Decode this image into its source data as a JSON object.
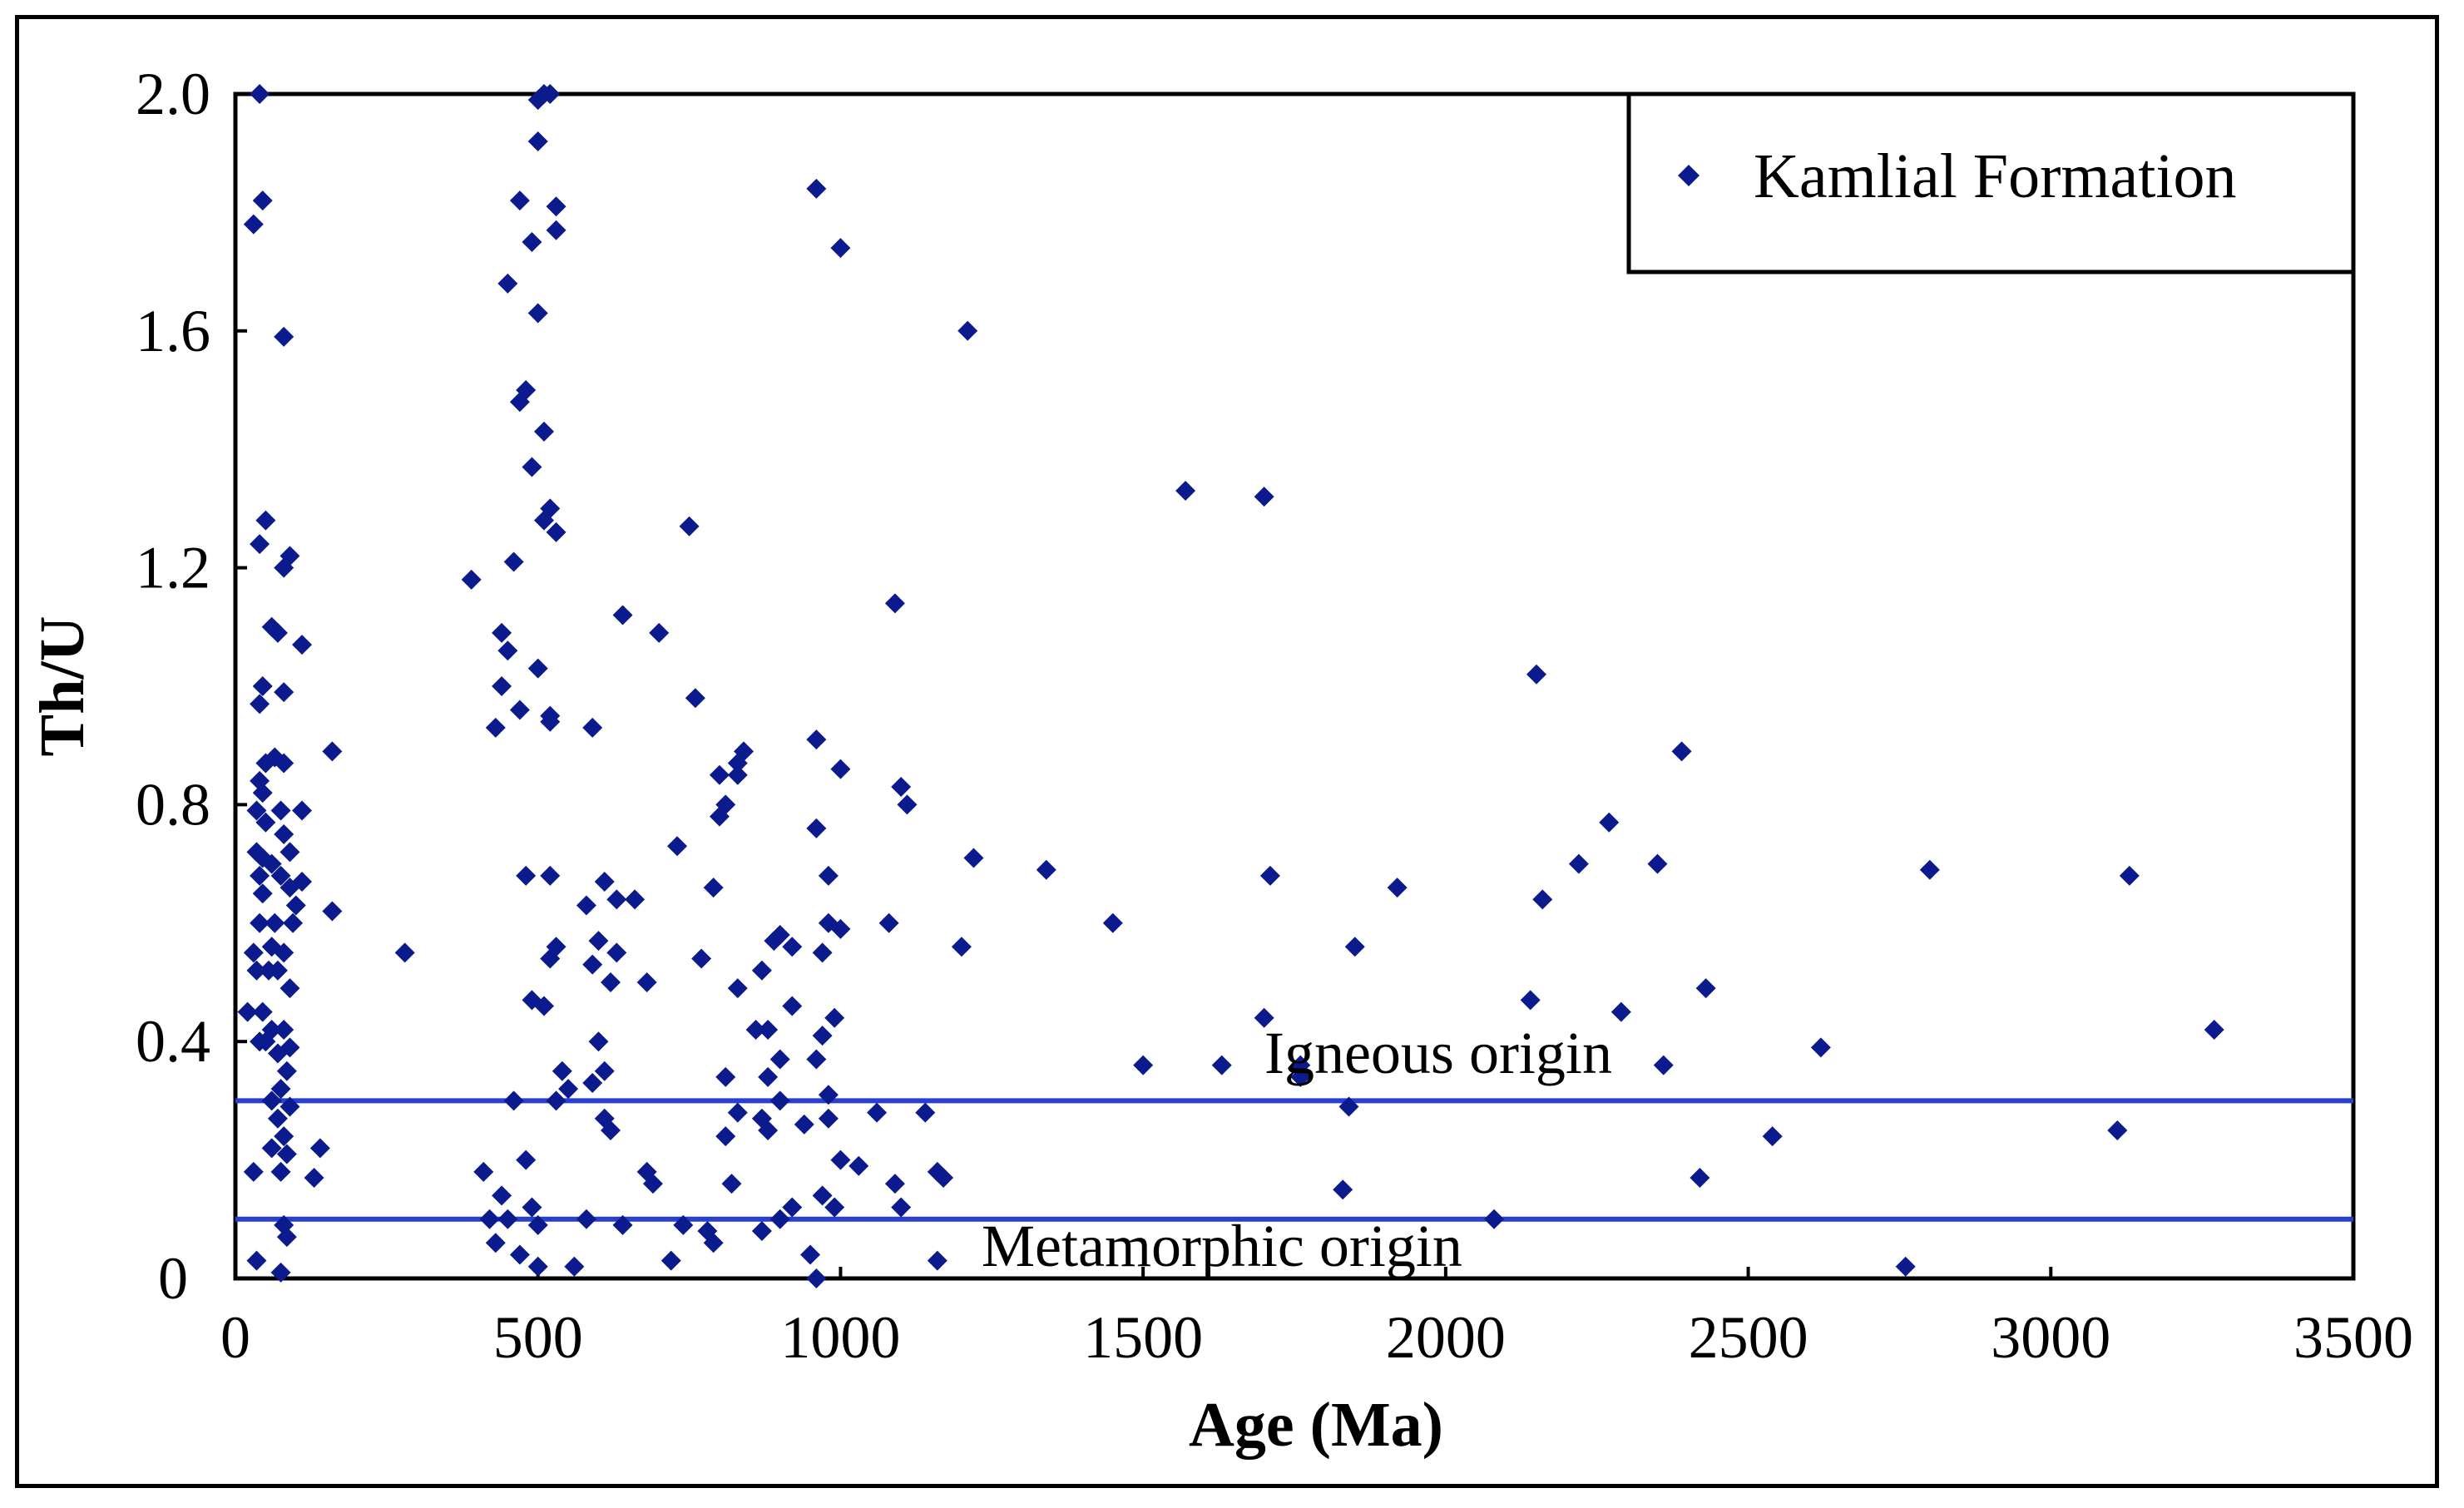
{
  "chart_data": {
    "type": "scatter",
    "title": "",
    "xlabel": "Age (Ma)",
    "ylabel": "Th/U",
    "xlim": [
      0,
      3500
    ],
    "ylim": [
      0,
      2.0
    ],
    "x_ticks": [
      0,
      500,
      1000,
      1500,
      2000,
      2500,
      3000,
      3500
    ],
    "x_tick_labels": [
      "0",
      "500",
      "1000",
      "1500",
      "2000",
      "2500",
      "3000",
      "3500"
    ],
    "y_ticks": [
      0,
      0.4,
      0.8,
      1.2,
      1.6,
      2.0
    ],
    "y_tick_labels": [
      "0",
      "0.4",
      "0.8",
      "1.2",
      "1.6",
      "2.0"
    ],
    "grid": false,
    "legend": {
      "position": "top-right",
      "entries": [
        "Kamlial Formation"
      ]
    },
    "reference_lines": [
      {
        "y": 0.3,
        "label": "Igneous origin",
        "color": "#2b3fcf"
      },
      {
        "y": 0.1,
        "label": "Metamorphic origin",
        "color": "#2b3fcf"
      }
    ],
    "series": [
      {
        "name": "Kamlial Formation",
        "color": "#0b1a8c",
        "marker": "diamond",
        "points": [
          [
            40,
            2.01
          ],
          [
            30,
            1.78
          ],
          [
            45,
            1.82
          ],
          [
            80,
            1.59
          ],
          [
            40,
            1.24
          ],
          [
            50,
            1.28
          ],
          [
            80,
            1.2
          ],
          [
            90,
            1.22
          ],
          [
            60,
            1.1
          ],
          [
            70,
            1.09
          ],
          [
            45,
            1.0
          ],
          [
            40,
            0.97
          ],
          [
            80,
            0.99
          ],
          [
            110,
            1.07
          ],
          [
            50,
            0.87
          ],
          [
            65,
            0.88
          ],
          [
            80,
            0.87
          ],
          [
            160,
            0.89
          ],
          [
            40,
            0.84
          ],
          [
            45,
            0.82
          ],
          [
            35,
            0.79
          ],
          [
            75,
            0.79
          ],
          [
            50,
            0.77
          ],
          [
            80,
            0.75
          ],
          [
            110,
            0.79
          ],
          [
            35,
            0.72
          ],
          [
            45,
            0.71
          ],
          [
            60,
            0.7
          ],
          [
            90,
            0.72
          ],
          [
            40,
            0.68
          ],
          [
            75,
            0.68
          ],
          [
            110,
            0.67
          ],
          [
            45,
            0.65
          ],
          [
            90,
            0.66
          ],
          [
            100,
            0.63
          ],
          [
            40,
            0.6
          ],
          [
            65,
            0.6
          ],
          [
            95,
            0.6
          ],
          [
            160,
            0.62
          ],
          [
            30,
            0.55
          ],
          [
            60,
            0.56
          ],
          [
            80,
            0.55
          ],
          [
            35,
            0.52
          ],
          [
            55,
            0.52
          ],
          [
            70,
            0.52
          ],
          [
            90,
            0.49
          ],
          [
            20,
            0.45
          ],
          [
            45,
            0.45
          ],
          [
            60,
            0.42
          ],
          [
            80,
            0.42
          ],
          [
            40,
            0.4
          ],
          [
            50,
            0.4
          ],
          [
            70,
            0.38
          ],
          [
            90,
            0.39
          ],
          [
            85,
            0.35
          ],
          [
            75,
            0.32
          ],
          [
            60,
            0.3
          ],
          [
            90,
            0.29
          ],
          [
            70,
            0.27
          ],
          [
            80,
            0.24
          ],
          [
            60,
            0.22
          ],
          [
            85,
            0.21
          ],
          [
            140,
            0.22
          ],
          [
            30,
            0.18
          ],
          [
            75,
            0.18
          ],
          [
            130,
            0.17
          ],
          [
            80,
            0.09
          ],
          [
            85,
            0.07
          ],
          [
            35,
            0.03
          ],
          [
            75,
            0.01
          ],
          [
            510,
            2.0
          ],
          [
            520,
            2.0
          ],
          [
            500,
            1.99
          ],
          [
            470,
            1.82
          ],
          [
            530,
            1.81
          ],
          [
            530,
            1.77
          ],
          [
            490,
            1.75
          ],
          [
            500,
            1.92
          ],
          [
            450,
            1.68
          ],
          [
            500,
            1.63
          ],
          [
            480,
            1.5
          ],
          [
            470,
            1.48
          ],
          [
            510,
            1.43
          ],
          [
            490,
            1.37
          ],
          [
            520,
            1.3
          ],
          [
            510,
            1.28
          ],
          [
            530,
            1.26
          ],
          [
            460,
            1.21
          ],
          [
            390,
            1.18
          ],
          [
            440,
            1.09
          ],
          [
            450,
            1.06
          ],
          [
            500,
            1.03
          ],
          [
            440,
            1.0
          ],
          [
            470,
            0.96
          ],
          [
            520,
            0.95
          ],
          [
            520,
            0.94
          ],
          [
            430,
            0.93
          ],
          [
            480,
            0.68
          ],
          [
            520,
            0.68
          ],
          [
            530,
            0.56
          ],
          [
            520,
            0.54
          ],
          [
            490,
            0.47
          ],
          [
            510,
            0.46
          ],
          [
            540,
            0.35
          ],
          [
            550,
            0.32
          ],
          [
            530,
            0.3
          ],
          [
            460,
            0.3
          ],
          [
            480,
            0.2
          ],
          [
            410,
            0.18
          ],
          [
            440,
            0.14
          ],
          [
            420,
            0.1
          ],
          [
            450,
            0.1
          ],
          [
            490,
            0.12
          ],
          [
            500,
            0.09
          ],
          [
            430,
            0.06
          ],
          [
            470,
            0.04
          ],
          [
            500,
            0.02
          ],
          [
            560,
            0.02
          ],
          [
            590,
            0.93
          ],
          [
            640,
            1.12
          ],
          [
            700,
            1.09
          ],
          [
            610,
            0.67
          ],
          [
            630,
            0.64
          ],
          [
            660,
            0.64
          ],
          [
            580,
            0.63
          ],
          [
            600,
            0.57
          ],
          [
            630,
            0.55
          ],
          [
            590,
            0.53
          ],
          [
            620,
            0.5
          ],
          [
            680,
            0.5
          ],
          [
            600,
            0.4
          ],
          [
            610,
            0.35
          ],
          [
            590,
            0.33
          ],
          [
            610,
            0.27
          ],
          [
            620,
            0.25
          ],
          [
            680,
            0.18
          ],
          [
            690,
            0.16
          ],
          [
            580,
            0.1
          ],
          [
            640,
            0.09
          ],
          [
            280,
            0.55
          ],
          [
            750,
            1.27
          ],
          [
            760,
            0.98
          ],
          [
            730,
            0.73
          ],
          [
            770,
            0.54
          ],
          [
            790,
            0.66
          ],
          [
            800,
            0.85
          ],
          [
            810,
            0.8
          ],
          [
            830,
            0.87
          ],
          [
            800,
            0.78
          ],
          [
            830,
            0.85
          ],
          [
            840,
            0.89
          ],
          [
            830,
            0.49
          ],
          [
            810,
            0.34
          ],
          [
            830,
            0.28
          ],
          [
            810,
            0.24
          ],
          [
            820,
            0.16
          ],
          [
            780,
            0.08
          ],
          [
            790,
            0.06
          ],
          [
            740,
            0.09
          ],
          [
            720,
            0.03
          ],
          [
            860,
            0.42
          ],
          [
            880,
            0.42
          ],
          [
            890,
            0.57
          ],
          [
            870,
            0.52
          ],
          [
            900,
            0.58
          ],
          [
            920,
            0.56
          ],
          [
            920,
            0.46
          ],
          [
            880,
            0.34
          ],
          [
            900,
            0.3
          ],
          [
            870,
            0.27
          ],
          [
            880,
            0.25
          ],
          [
            900,
            0.37
          ],
          [
            870,
            0.08
          ],
          [
            900,
            0.1
          ],
          [
            920,
            0.12
          ],
          [
            950,
            0.04
          ],
          [
            960,
            0.0
          ],
          [
            940,
            0.26
          ],
          [
            960,
            0.91
          ],
          [
            1000,
            0.86
          ],
          [
            960,
            0.76
          ],
          [
            980,
            0.68
          ],
          [
            980,
            0.6
          ],
          [
            1000,
            0.59
          ],
          [
            970,
            0.55
          ],
          [
            990,
            0.44
          ],
          [
            970,
            0.41
          ],
          [
            960,
            0.37
          ],
          [
            980,
            0.31
          ],
          [
            980,
            0.27
          ],
          [
            1000,
            0.2
          ],
          [
            1030,
            0.19
          ],
          [
            970,
            0.14
          ],
          [
            990,
            0.12
          ],
          [
            960,
            1.84
          ],
          [
            1000,
            1.74
          ],
          [
            1080,
            0.6
          ],
          [
            1100,
            0.83
          ],
          [
            1110,
            0.8
          ],
          [
            1090,
            1.14
          ],
          [
            1060,
            0.28
          ],
          [
            1140,
            0.28
          ],
          [
            1090,
            0.16
          ],
          [
            1100,
            0.12
          ],
          [
            1160,
            0.18
          ],
          [
            1170,
            0.17
          ],
          [
            1160,
            0.03
          ],
          [
            1200,
            0.56
          ],
          [
            1210,
            1.6
          ],
          [
            1220,
            0.71
          ],
          [
            1340,
            0.69
          ],
          [
            1450,
            0.6
          ],
          [
            1500,
            0.36
          ],
          [
            1570,
            1.33
          ],
          [
            1630,
            0.36
          ],
          [
            1700,
            1.32
          ],
          [
            1710,
            0.68
          ],
          [
            1700,
            0.44
          ],
          [
            1760,
            0.36
          ],
          [
            1760,
            0.34
          ],
          [
            1840,
            0.29
          ],
          [
            1850,
            0.56
          ],
          [
            1830,
            0.15
          ],
          [
            1920,
            0.66
          ],
          [
            2080,
            0.1
          ],
          [
            2140,
            0.47
          ],
          [
            2160,
            0.64
          ],
          [
            2150,
            1.02
          ],
          [
            2220,
            0.7
          ],
          [
            2270,
            0.77
          ],
          [
            2290,
            0.45
          ],
          [
            2350,
            0.7
          ],
          [
            2360,
            0.36
          ],
          [
            2390,
            0.89
          ],
          [
            2420,
            0.17
          ],
          [
            2430,
            0.49
          ],
          [
            2540,
            0.24
          ],
          [
            2620,
            0.39
          ],
          [
            2760,
            0.02
          ],
          [
            2800,
            0.69
          ],
          [
            3110,
            0.25
          ],
          [
            3130,
            0.68
          ],
          [
            3270,
            0.42
          ]
        ]
      }
    ]
  }
}
